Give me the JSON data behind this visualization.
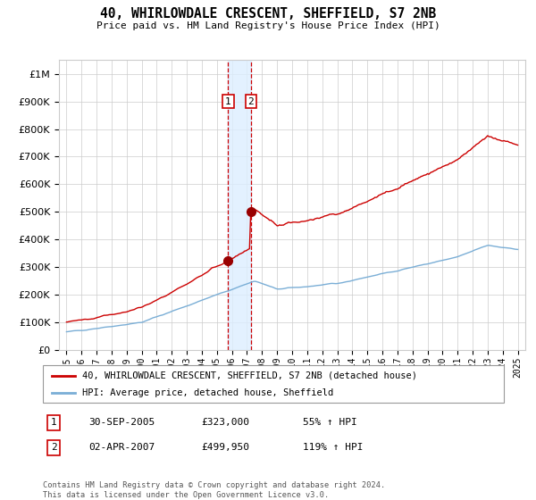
{
  "title": "40, WHIRLOWDALE CRESCENT, SHEFFIELD, S7 2NB",
  "subtitle": "Price paid vs. HM Land Registry's House Price Index (HPI)",
  "legend_line1": "40, WHIRLOWDALE CRESCENT, SHEFFIELD, S7 2NB (detached house)",
  "legend_line2": "HPI: Average price, detached house, Sheffield",
  "transaction1_date": "30-SEP-2005",
  "transaction1_price": "£323,000",
  "transaction1_hpi": "55% ↑ HPI",
  "transaction1_year": 2005.75,
  "transaction1_value": 323000,
  "transaction2_date": "02-APR-2007",
  "transaction2_price": "£499,950",
  "transaction2_hpi": "119% ↑ HPI",
  "transaction2_year": 2007.25,
  "transaction2_value": 499950,
  "footnote": "Contains HM Land Registry data © Crown copyright and database right 2024.\nThis data is licensed under the Open Government Licence v3.0.",
  "hpi_color": "#7aaed6",
  "price_color": "#cc0000",
  "marker_color": "#990000",
  "shading_color": "#ddeeff",
  "vline_color": "#cc0000",
  "ylim_max": 1050000,
  "ylim_min": 0,
  "year_start": 1995,
  "year_end": 2025
}
